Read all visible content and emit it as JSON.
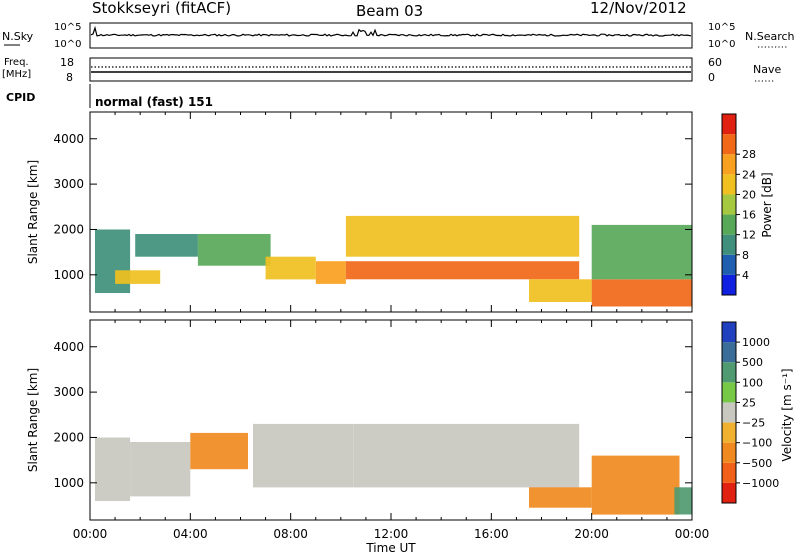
{
  "header": {
    "station": "Stokkseyri (fitACF)",
    "beam": "Beam 03",
    "date": "12/Nov/2012"
  },
  "top_panel": {
    "left_labels": {
      "nsky": "N.Sky",
      "freq": "Freq.",
      "mhz": "[MHz]",
      "cpid": "CPID"
    },
    "right_labels": {
      "nsearch": "N.Search",
      "nave": "Nave"
    },
    "nsky_ticks": [
      "10^5",
      "10^0"
    ],
    "nsearch_ticks": [
      "10^5",
      "10^0"
    ],
    "freq_ticks": [
      "18",
      "8"
    ],
    "nave_ticks": [
      "60",
      "0"
    ],
    "cpid_text": "normal (fast) 151"
  },
  "x_axis": {
    "label": "Time UT",
    "ticks": [
      "00:00",
      "04:00",
      "08:00",
      "12:00",
      "16:00",
      "20:00",
      "00:00"
    ]
  },
  "chart_data": [
    {
      "type": "heatmap",
      "quantity": "Power",
      "colorbar_label": "Power [dB]",
      "ylabel": "Slant Range [km]",
      "x_range_hours": [
        0,
        24
      ],
      "ylim": [
        180,
        4590
      ],
      "yticks": [
        1000,
        2000,
        3000,
        4000
      ],
      "colorbar": {
        "ticks": [
          "4",
          "8",
          "12",
          "16",
          "20",
          "24",
          "28"
        ],
        "colors": [
          "#1020e0",
          "#205fb0",
          "#3f8f7c",
          "#58a85a",
          "#a6c840",
          "#f0c020",
          "#f8a020",
          "#f06818",
          "#e02010"
        ]
      },
      "regions": [
        {
          "t0": 0.2,
          "t1": 1.6,
          "r0": 600,
          "r1": 2000,
          "v": 9
        },
        {
          "t0": 1.0,
          "t1": 2.8,
          "r0": 800,
          "r1": 1100,
          "v": 20
        },
        {
          "t0": 1.8,
          "t1": 4.3,
          "r0": 1400,
          "r1": 1900,
          "v": 10
        },
        {
          "t0": 4.3,
          "t1": 7.2,
          "r0": 1200,
          "r1": 1900,
          "v": 14
        },
        {
          "t0": 7.0,
          "t1": 9.0,
          "r0": 900,
          "r1": 1400,
          "v": 18
        },
        {
          "t0": 9.0,
          "t1": 10.2,
          "r0": 800,
          "r1": 1300,
          "v": 22
        },
        {
          "t0": 10.2,
          "t1": 19.5,
          "r0": 900,
          "r1": 1300,
          "v": 28
        },
        {
          "t0": 10.2,
          "t1": 19.5,
          "r0": 1400,
          "r1": 2300,
          "v": 20
        },
        {
          "t0": 17.5,
          "t1": 20.0,
          "r0": 400,
          "r1": 900,
          "v": 18
        },
        {
          "t0": 20.0,
          "t1": 24.0,
          "r0": 300,
          "r1": 900,
          "v": 28
        },
        {
          "t0": 20.0,
          "t1": 24.0,
          "r0": 900,
          "r1": 2100,
          "v": 12
        }
      ]
    },
    {
      "type": "heatmap",
      "quantity": "Velocity",
      "colorbar_label": "Velocity [m s⁻¹]",
      "ylabel": "Slant Range [km]",
      "x_range_hours": [
        0,
        24
      ],
      "ylim": [
        180,
        4590
      ],
      "yticks": [
        1000,
        2000,
        3000,
        4000
      ],
      "colorbar": {
        "ticks": [
          "1000",
          "500",
          "100",
          "25",
          "−25",
          "−100",
          "−500",
          "−1000"
        ],
        "colors": [
          "#2040c0",
          "#3a6e98",
          "#4f9a70",
          "#78c848",
          "#c8c8c0",
          "#f0b030",
          "#f08a20",
          "#f06018",
          "#e02010"
        ]
      },
      "regions": [
        {
          "t0": 0.2,
          "t1": 1.6,
          "r0": 600,
          "r1": 2000,
          "v": 0
        },
        {
          "t0": 1.6,
          "t1": 4.0,
          "r0": 700,
          "r1": 1900,
          "v": 0
        },
        {
          "t0": 4.0,
          "t1": 6.3,
          "r0": 1300,
          "r1": 2100,
          "v": -200
        },
        {
          "t0": 6.5,
          "t1": 10.5,
          "r0": 900,
          "r1": 2300,
          "v": 0
        },
        {
          "t0": 10.5,
          "t1": 19.5,
          "r0": 900,
          "r1": 2300,
          "v": 0
        },
        {
          "t0": 17.5,
          "t1": 20.0,
          "r0": 450,
          "r1": 900,
          "v": -300
        },
        {
          "t0": 20.0,
          "t1": 23.5,
          "r0": 300,
          "r1": 1600,
          "v": -300
        },
        {
          "t0": 23.3,
          "t1": 24.0,
          "r0": 300,
          "r1": 900,
          "v": 200
        }
      ]
    }
  ]
}
